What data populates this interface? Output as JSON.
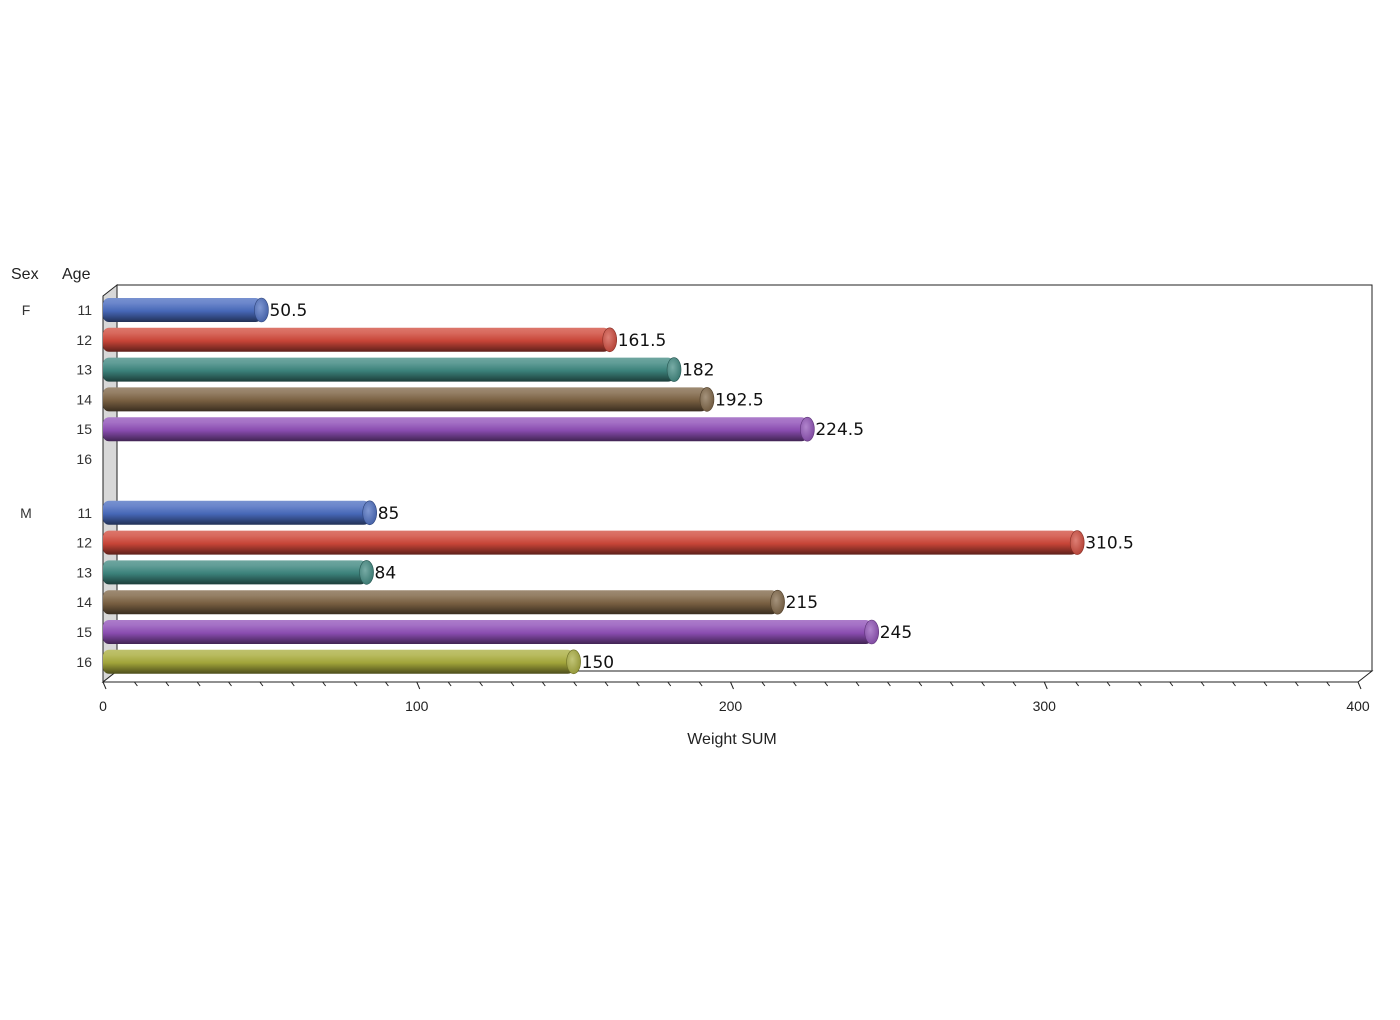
{
  "chart_data": {
    "type": "bar",
    "orientation": "horizontal",
    "style": "3d-cylinder",
    "headers": {
      "group": "Sex",
      "category": "Age"
    },
    "xlabel": "Weight SUM",
    "xlim": [
      0,
      400
    ],
    "xticks": [
      0,
      100,
      200,
      300,
      400
    ],
    "grid": false,
    "groups": [
      {
        "name": "F",
        "rows": [
          {
            "age": "11",
            "value": 50.5,
            "label": "50.5"
          },
          {
            "age": "12",
            "value": 161.5,
            "label": "161.5"
          },
          {
            "age": "13",
            "value": 182,
            "label": "182"
          },
          {
            "age": "14",
            "value": 192.5,
            "label": "192.5"
          },
          {
            "age": "15",
            "value": 224.5,
            "label": "224.5"
          },
          {
            "age": "16",
            "value": null,
            "label": ""
          }
        ]
      },
      {
        "name": "M",
        "rows": [
          {
            "age": "11",
            "value": 85,
            "label": "85"
          },
          {
            "age": "12",
            "value": 310.5,
            "label": "310.5"
          },
          {
            "age": "13",
            "value": 84,
            "label": "84"
          },
          {
            "age": "14",
            "value": 215,
            "label": "215"
          },
          {
            "age": "15",
            "value": 245,
            "label": "245"
          },
          {
            "age": "16",
            "value": 150,
            "label": "150"
          }
        ]
      }
    ],
    "colors": {
      "11": "#4a6cc0",
      "12": "#d0483a",
      "13": "#3e8880",
      "14": "#7e6444",
      "15": "#9050b8",
      "16": "#a8ac3c"
    }
  }
}
